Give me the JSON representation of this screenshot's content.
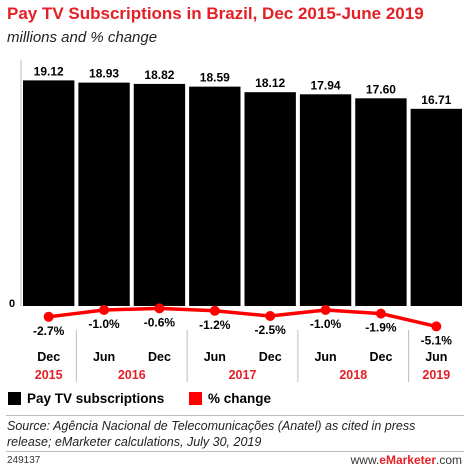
{
  "title": "Pay TV Subscriptions in Brazil, Dec 2015-June 2019",
  "subtitle": "millions and % change",
  "chart_data": {
    "type": "bar",
    "categories": [
      "Dec",
      "Jun",
      "Dec",
      "Jun",
      "Dec",
      "Jun",
      "Dec",
      "Jun"
    ],
    "years": [
      {
        "label": "2015",
        "span": 1
      },
      {
        "label": "2016",
        "span": 2
      },
      {
        "label": "2017",
        "span": 2
      },
      {
        "label": "2018",
        "span": 2
      },
      {
        "label": "2019",
        "span": 1
      }
    ],
    "series": [
      {
        "name": "Pay TV subscriptions",
        "type": "bar",
        "color": "#000000",
        "values": [
          19.12,
          18.93,
          18.82,
          18.59,
          18.12,
          17.94,
          17.6,
          16.71
        ],
        "labels": [
          "19.12",
          "18.93",
          "18.82",
          "18.59",
          "18.12",
          "17.94",
          "17.60",
          "16.71"
        ]
      },
      {
        "name": "% change",
        "type": "line",
        "color": "#ff0000",
        "values": [
          -2.7,
          -1.0,
          -0.6,
          -1.2,
          -2.5,
          -1.0,
          -1.9,
          -5.1
        ],
        "labels": [
          "-2.7%",
          "-1.0%",
          "-0.6%",
          "-1.2%",
          "-2.5%",
          "-1.0%",
          "-1.9%",
          "-5.1%"
        ]
      }
    ],
    "zero_label": "0",
    "ylim": [
      0,
      20
    ],
    "legend": "bottom-left",
    "grid": false
  },
  "footer": {
    "source": "Source: Agência Nacional de Telecomunicações (Anatel) as cited in press release; eMarketer calculations, July 30, 2019",
    "code": "249137",
    "brand_prefix": "www.",
    "brand_name": "eMarketer",
    "brand_suffix": ".com"
  }
}
